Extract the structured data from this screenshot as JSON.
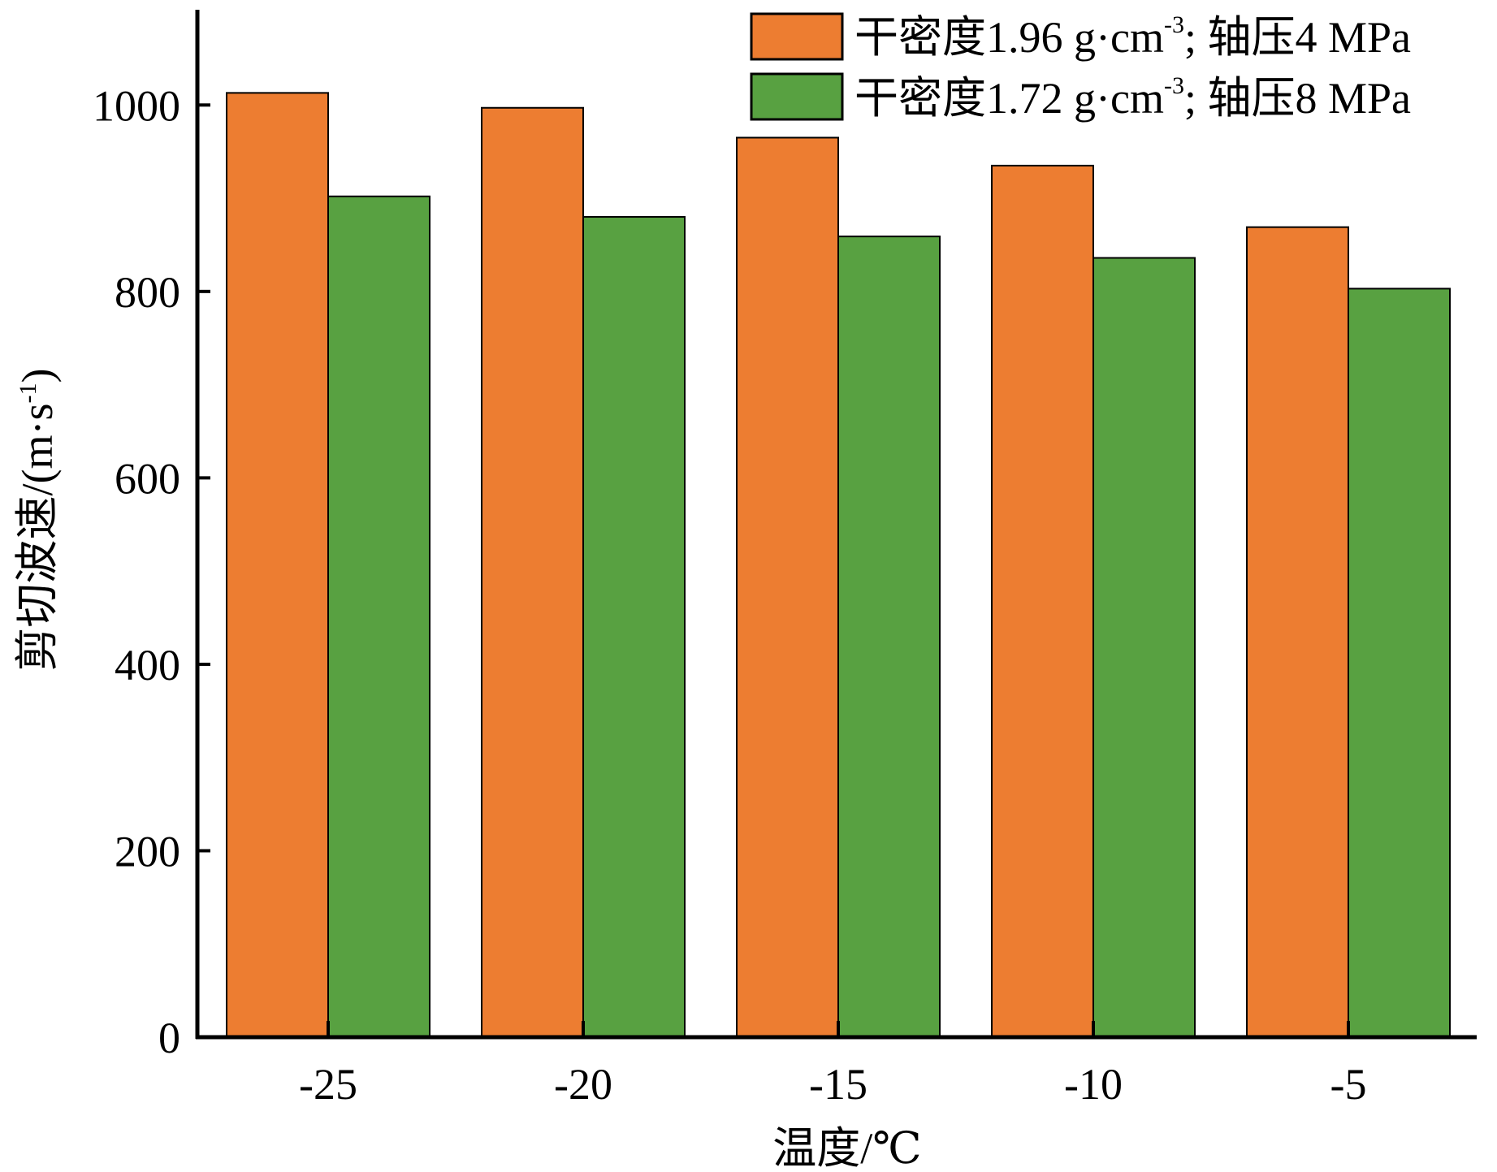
{
  "chart_data": {
    "type": "bar",
    "title": "",
    "xlabel": "温度/℃",
    "ylabel": "剪切波速/(m·s",
    "ylabel_sup": "-1",
    "ylabel_end": ")",
    "categories": [
      "-25",
      "-20",
      "-15",
      "-10",
      "-5"
    ],
    "series": [
      {
        "name": "干密度1.96 g·cm-3; 轴压4 MPa",
        "name_main": "干密度1.96 g·cm",
        "name_sup": "-3",
        "name_end": "; 轴压4 MPa",
        "color": "#ED7D31",
        "values": [
          1013,
          997,
          965,
          935,
          869
        ]
      },
      {
        "name": "干密度1.72 g·cm-3; 轴压8 MPa",
        "name_main": "干密度1.72 g·cm",
        "name_sup": "-3",
        "name_end": "; 轴压8 MPa",
        "color": "#58A141",
        "values": [
          902,
          880,
          859,
          836,
          803
        ]
      }
    ],
    "yticks": [
      0,
      200,
      400,
      600,
      800,
      1000
    ],
    "ylim": [
      0,
      1100
    ],
    "grid": false,
    "legend_position": "top-right"
  }
}
